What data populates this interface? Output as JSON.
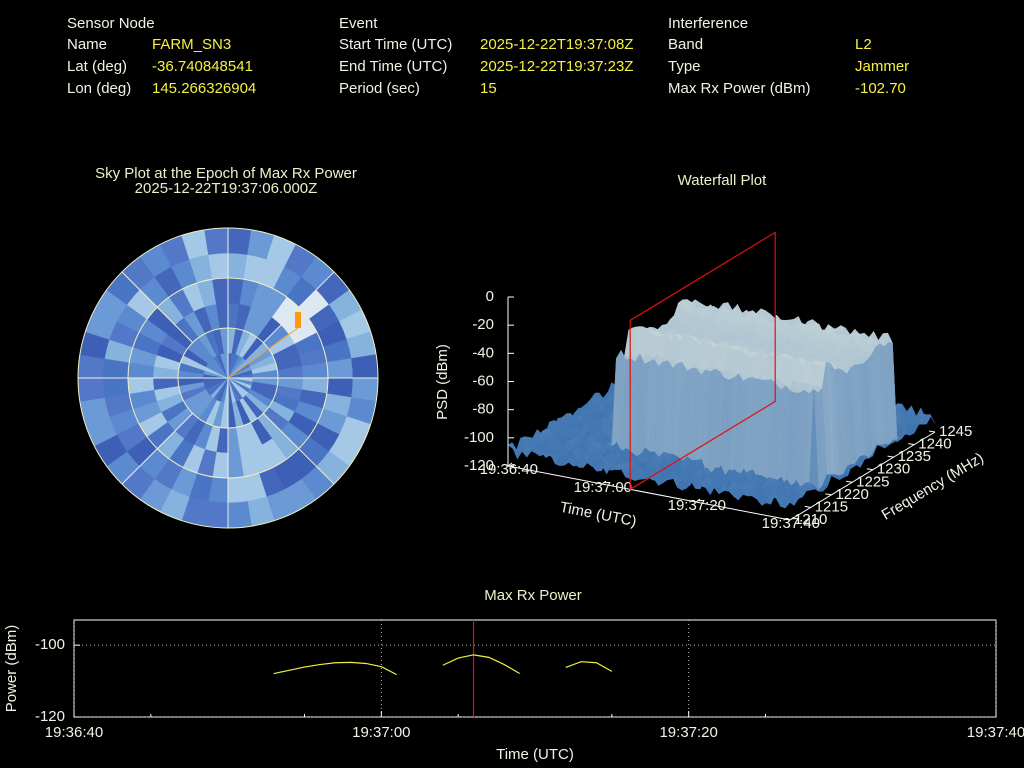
{
  "header": {
    "columns": [
      {
        "title": "Sensor Node",
        "rows": [
          {
            "label": "Name",
            "value": "FARM_SN3"
          },
          {
            "label": "Lat (deg)",
            "value": "-36.740848541"
          },
          {
            "label": "Lon (deg)",
            "value": "145.266326904"
          }
        ]
      },
      {
        "title": "Event",
        "rows": [
          {
            "label": "Start Time (UTC)",
            "value": "2025-12-22T19:37:08Z"
          },
          {
            "label": "End Time (UTC)",
            "value": "2025-12-22T19:37:23Z"
          },
          {
            "label": "Period (sec)",
            "value": "15"
          }
        ]
      },
      {
        "title": "Interference",
        "rows": [
          {
            "label": "Band",
            "value": "L2"
          },
          {
            "label": "Type",
            "value": "Jammer"
          },
          {
            "label": "Max Rx Power (dBm)",
            "value": "-102.70"
          }
        ]
      }
    ]
  },
  "chart_data": [
    {
      "type": "polar",
      "title": "Sky Plot at the Epoch of Max Rx Power",
      "subtitle": "2025-12-22T19:37:06.000Z"
    },
    {
      "type": "surface",
      "title": "Waterfall Plot",
      "xlabel": "Time (UTC)",
      "ylabel": "Frequency (MHz)",
      "zlabel": "PSD (dBm)",
      "xlim": [
        "19:36:40",
        "19:37:40"
      ],
      "xticks": [
        "19:36:40",
        "19:37:00",
        "19:37:20",
        "19:37:40"
      ],
      "ylim": [
        1210,
        1245
      ],
      "yticks": [
        1210,
        1215,
        1220,
        1225,
        1230,
        1235,
        1240,
        1245
      ],
      "zlim": [
        -120,
        0
      ],
      "zticks": [
        0,
        -20,
        -40,
        -60,
        -80,
        -100,
        -120
      ],
      "marker_x": "19:37:06",
      "marker_color": "#e01010"
    },
    {
      "type": "line",
      "title": "Max Rx Power",
      "xlabel": "Time (UTC)",
      "ylabel": "Power (dBm)",
      "x": [
        "19:36:53",
        "19:36:54",
        "19:36:55",
        "19:36:56",
        "19:36:57",
        "19:36:58",
        "19:36:59",
        "19:37:00",
        "19:37:01",
        "19:37:02",
        "19:37:04",
        "19:37:05",
        "19:37:06",
        "19:37:07",
        "19:37:08",
        "19:37:09",
        "19:37:10",
        "19:37:12",
        "19:37:13",
        "19:37:14",
        "19:37:15"
      ],
      "values": [
        -107.9,
        -107.0,
        -106.1,
        -105.4,
        -104.9,
        -104.8,
        -105.1,
        -106.0,
        -108.2,
        null,
        -105.6,
        -103.6,
        -102.7,
        -103.4,
        -105.4,
        -107.9,
        null,
        -106.2,
        -104.6,
        -104.9,
        -107.3
      ],
      "color": "#f0f040",
      "xlim": [
        "19:36:40",
        "19:37:40"
      ],
      "xticks": [
        "19:36:40",
        "19:37:00",
        "19:37:20",
        "19:37:40"
      ],
      "ylim": [
        -120,
        -93
      ],
      "yticks": [
        -100,
        -120
      ],
      "grid": true,
      "marker_x": "19:37:06",
      "marker_color": "#e01010"
    }
  ]
}
